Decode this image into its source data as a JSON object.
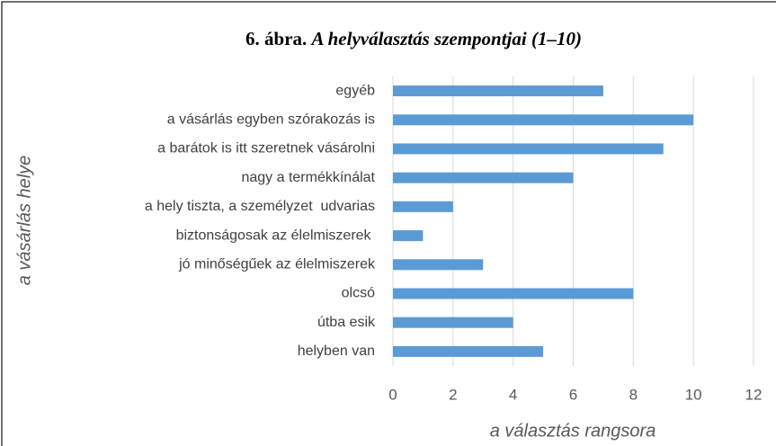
{
  "chart_data": {
    "type": "bar",
    "orientation": "horizontal",
    "title_label": "6. ábra.",
    "title": "A helyválasztás szempontjai (1–10)",
    "x_label": "a választás rangsora",
    "y_label": "a vásárlás helye",
    "categories": [
      "egyéb",
      "a vásárlás egyben szórakozás is",
      "a barátok is itt szeretnek vásárolni",
      "nagy a termékkínálat",
      "a hely tiszta, a személyzet  udvarias",
      "biztonságosak az élelmiszerek ",
      "jó minőségűek az élelmiszerek",
      "olcsó",
      "útba esik",
      "helyben van"
    ],
    "values": [
      7,
      10,
      9,
      6,
      2,
      1,
      3,
      8,
      4,
      5
    ],
    "color": "#5b9bd5",
    "xlim": [
      0,
      12
    ],
    "xticks": [
      0,
      2,
      4,
      6,
      8,
      10,
      12
    ],
    "grid": true
  }
}
